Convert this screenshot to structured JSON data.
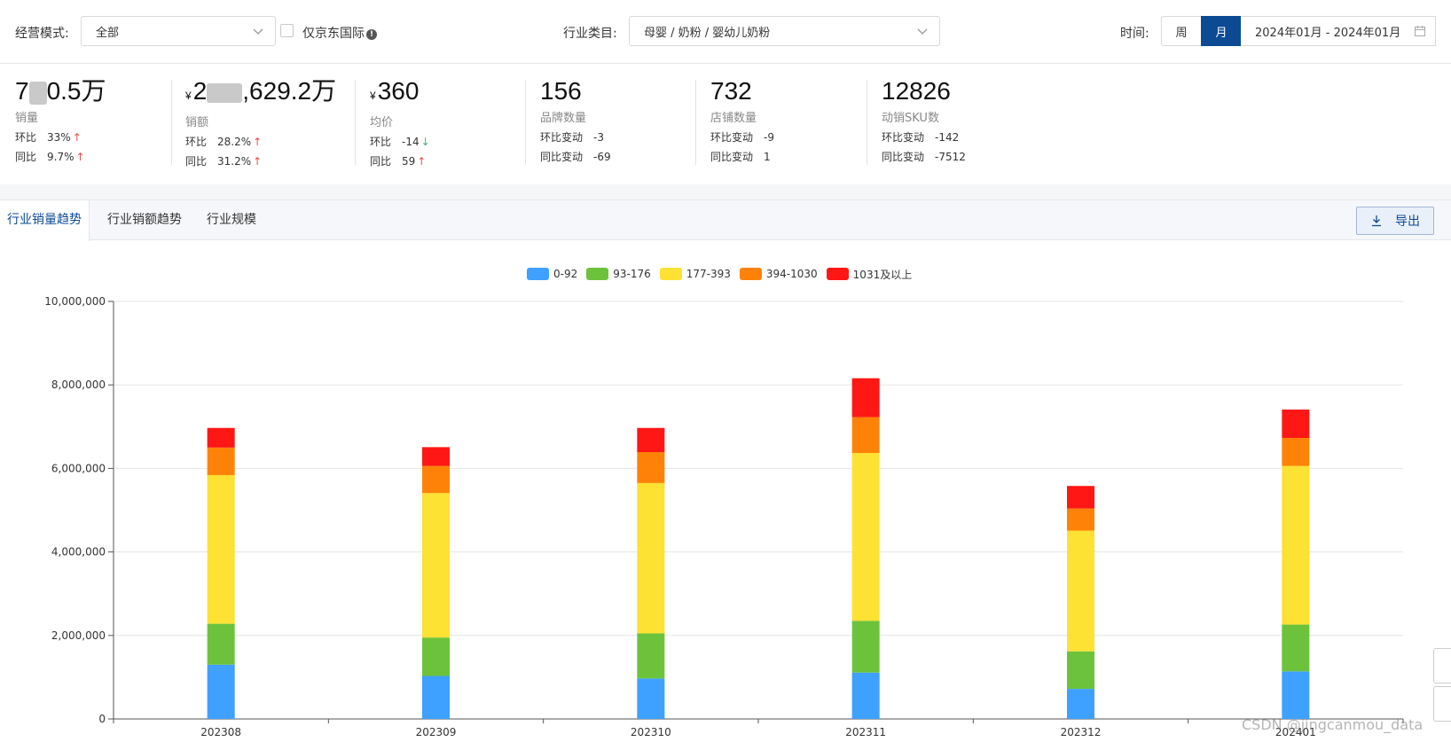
{
  "filters": {
    "mode_label": "经营模式:",
    "mode_value": "全部",
    "jd_intl_label": "仅京东国际",
    "industry_label": "行业类目:",
    "industry_value": "母婴 / 奶粉 / 婴幼儿奶粉",
    "time_label": "时间:",
    "week_label": "周",
    "month_label": "月",
    "date_range": "2024年01月 - 2024年01月"
  },
  "metrics": [
    {
      "value_a": "7",
      "value_b": "0.5万",
      "label": "销量",
      "r1_label": "环比",
      "r1_val": "33%",
      "r1_dir": "up",
      "r2_label": "同比",
      "r2_val": "9.7%",
      "r2_dir": "up"
    },
    {
      "currency": "¥",
      "value_a": "2",
      "value_b": ",629.2万",
      "label": "销额",
      "r1_label": "环比",
      "r1_val": "28.2%",
      "r1_dir": "up",
      "r2_label": "同比",
      "r2_val": "31.2%",
      "r2_dir": "up"
    },
    {
      "currency": "¥",
      "value_a": "360",
      "value_b": "",
      "label": "均价",
      "r1_label": "环比",
      "r1_val": "-14",
      "r1_dir": "down",
      "r2_label": "同比",
      "r2_val": "59",
      "r2_dir": "up"
    },
    {
      "value_a": "156",
      "value_b": "",
      "label": "品牌数量",
      "r1_label": "环比变动",
      "r1_val": "-3",
      "r1_dir": "",
      "r2_label": "同比变动",
      "r2_val": "-69",
      "r2_dir": ""
    },
    {
      "value_a": "732",
      "value_b": "",
      "label": "店铺数量",
      "r1_label": "环比变动",
      "r1_val": "-9",
      "r1_dir": "",
      "r2_label": "同比变动",
      "r2_val": "1",
      "r2_dir": ""
    },
    {
      "value_a": "12826",
      "value_b": "",
      "label": "动销SKU数",
      "r1_label": "环比变动",
      "r1_val": "-142",
      "r1_dir": "",
      "r2_label": "同比变动",
      "r2_val": "-7512",
      "r2_dir": ""
    }
  ],
  "tabs": [
    "行业销量趋势",
    "行业销额趋势",
    "行业规模"
  ],
  "export_label": "导出",
  "watermark": "CSDN @jingcanmou_data",
  "chart_data": {
    "type": "bar",
    "stacked": true,
    "categories": [
      "202308",
      "202309",
      "202310",
      "202311",
      "202312",
      "202401"
    ],
    "ylim": [
      0,
      10000000
    ],
    "yticks": [
      "0",
      "2,000,000",
      "4,000,000",
      "6,000,000",
      "8,000,000",
      "10,000,000"
    ],
    "series": [
      {
        "name": "0-92",
        "color": "#3ea0ff",
        "values": [
          1300000,
          1030000,
          970000,
          1110000,
          720000,
          1140000
        ]
      },
      {
        "name": "93-176",
        "color": "#6cc33b",
        "values": [
          980000,
          920000,
          1080000,
          1240000,
          900000,
          1120000
        ]
      },
      {
        "name": "177-393",
        "color": "#fde133",
        "values": [
          3560000,
          3460000,
          3600000,
          4020000,
          2890000,
          3800000
        ]
      },
      {
        "name": "394-1030",
        "color": "#ff8208",
        "values": [
          660000,
          650000,
          740000,
          860000,
          530000,
          670000
        ]
      },
      {
        "name": "1031及以上",
        "color": "#ff1715",
        "values": [
          470000,
          450000,
          580000,
          930000,
          540000,
          680000
        ]
      }
    ],
    "grid": true,
    "legend_position": "top-center"
  }
}
